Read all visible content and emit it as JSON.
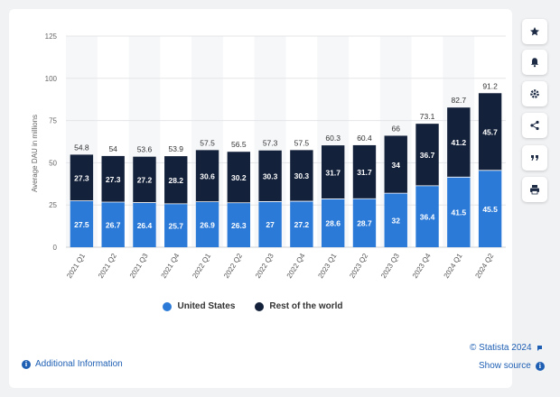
{
  "chart_data": {
    "type": "bar",
    "stacked": true,
    "categories": [
      "2021 Q1",
      "2021 Q2",
      "2021 Q3",
      "2021 Q4",
      "2022 Q1",
      "2022 Q2",
      "2022 Q3",
      "2022 Q4",
      "2023 Q1",
      "2023 Q2",
      "2023 Q3",
      "2023 Q4",
      "2024 Q1",
      "2024 Q2"
    ],
    "series": [
      {
        "name": "United States",
        "color": "#2b7ad8",
        "values": [
          27.5,
          26.7,
          26.4,
          25.7,
          26.9,
          26.3,
          27,
          27.2,
          28.6,
          28.7,
          32,
          36.4,
          41.5,
          45.5
        ]
      },
      {
        "name": "Rest of the world",
        "color": "#14213a",
        "values": [
          27.3,
          27.3,
          27.2,
          28.2,
          30.6,
          30.2,
          30.3,
          30.3,
          31.7,
          31.7,
          34,
          36.7,
          41.2,
          45.7
        ]
      }
    ],
    "totals": [
      "54.8",
      "54",
      "53.6",
      "53.9",
      "57.5",
      "56.5",
      "57.3",
      "57.5",
      "60.3",
      "60.4",
      "66",
      "73.1",
      "82.7",
      "91.2"
    ],
    "us_labels": [
      "27.5",
      "26.7",
      "26.4",
      "25.7",
      "26.9",
      "26.3",
      "27",
      "27.2",
      "28.6",
      "28.7",
      "32",
      "36.4",
      "41.5",
      "45.5"
    ],
    "row_labels": [
      "27.3",
      "27.3",
      "27.2",
      "28.2",
      "30.6",
      "30.2",
      "30.3",
      "30.3",
      "31.7",
      "31.7",
      "34",
      "36.7",
      "41.2",
      "45.7"
    ],
    "ylabel": "Average DAU in millions",
    "ylim": [
      0,
      125
    ],
    "yticks": [
      "0",
      "25",
      "50",
      "75",
      "100",
      "125"
    ],
    "grid": true,
    "legend_position": "bottom"
  },
  "footer": {
    "copyright": "© Statista 2024",
    "additional_info": "Additional Information",
    "show_source": "Show source"
  },
  "side_toolbar": [
    {
      "icon": "star-icon"
    },
    {
      "icon": "bell-icon"
    },
    {
      "icon": "gear-icon"
    },
    {
      "icon": "share-icon"
    },
    {
      "icon": "quote-icon"
    },
    {
      "icon": "print-icon"
    }
  ]
}
